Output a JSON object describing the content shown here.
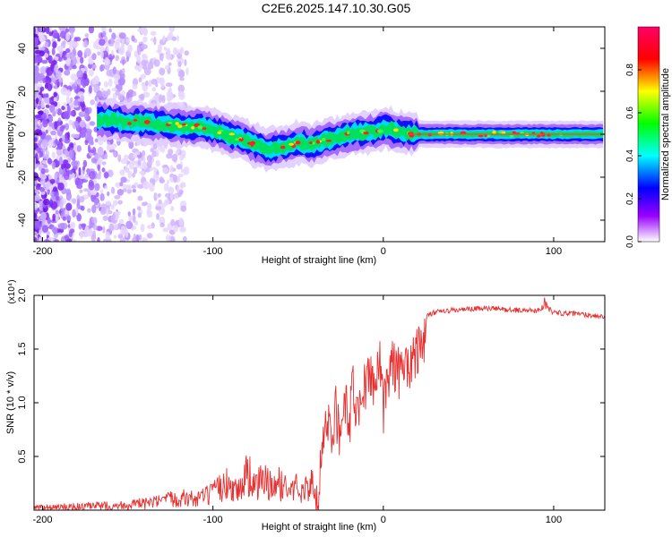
{
  "title": "C2E6.2025.147.10.30.G05",
  "chart_data": [
    {
      "type": "heatmap",
      "xlabel": "Height of straight line (km)",
      "ylabel": "Frequency (Hz)",
      "xlim": [
        -205,
        130
      ],
      "ylim": [
        -50,
        50
      ],
      "xticks": [
        -200,
        -100,
        0,
        100
      ],
      "yticks": [
        -40,
        -20,
        0,
        20,
        40
      ],
      "colorbar": {
        "label": "Normalized spectral amplitude",
        "range": [
          0.0,
          1.0
        ],
        "ticks": [
          "0.0",
          "0.2",
          "0.4",
          "0.6",
          "0.8"
        ],
        "tick_values": [
          0.0,
          0.2,
          0.4,
          0.6,
          0.8
        ],
        "colors": [
          "#ffffff",
          "#9900ff",
          "#0000ff",
          "#00ffff",
          "#00ff00",
          "#ffff00",
          "#ff0000",
          "#ff0066"
        ]
      },
      "ridge": {
        "x": [
          -165,
          -150,
          -135,
          -120,
          -105,
          -95,
          -85,
          -75,
          -68,
          -60,
          -50,
          -42,
          -35,
          -25,
          -15,
          -5,
          0,
          10,
          20,
          40,
          60,
          80,
          100,
          130
        ],
        "frequency": [
          7,
          6,
          5,
          4,
          3,
          1,
          -2,
          -5,
          -7,
          -6,
          -4,
          -5,
          -3,
          -1,
          1,
          1,
          3,
          1,
          0,
          0,
          0,
          0,
          0,
          0
        ]
      }
    },
    {
      "type": "line",
      "xlabel": "Height of straight line (km)",
      "ylabel": "SNR (10 * v/v)",
      "y_exponent": "(x10⁴)",
      "xlim": [
        -205,
        130
      ],
      "ylim": [
        0,
        2.0
      ],
      "xticks": [
        -200,
        -100,
        0,
        100
      ],
      "yticks": [
        0.5,
        1.0,
        1.5,
        2.0
      ],
      "ytick_labels": [
        "0.5",
        "1.0",
        "1.5",
        "2.0"
      ],
      "color": "#e83030",
      "series": [
        {
          "x": [
            -205,
            -180,
            -160,
            -140,
            -130,
            -120,
            -110,
            -100,
            -95,
            -90,
            -85,
            -80,
            -75,
            -70,
            -65,
            -60,
            -55,
            -50,
            -45,
            -40,
            -38,
            -35,
            -32,
            -30,
            -28,
            -25,
            -22,
            -20,
            -18,
            -15,
            -12,
            -10,
            -8,
            -5,
            -2,
            0,
            5,
            10,
            15,
            20,
            25,
            30,
            40,
            50,
            60,
            70,
            80,
            90,
            95,
            100,
            110,
            120,
            130
          ],
          "values": [
            0.02,
            0.03,
            0.04,
            0.06,
            0.08,
            0.12,
            0.1,
            0.15,
            0.22,
            0.25,
            0.18,
            0.35,
            0.22,
            0.28,
            0.2,
            0.25,
            0.18,
            0.22,
            0.2,
            0.25,
            0.45,
            0.9,
            1.0,
            0.7,
            1.2,
            0.8,
            1.3,
            1.0,
            1.4,
            1.1,
            1.5,
            1.3,
            1.55,
            1.4,
            1.6,
            1.2,
            1.6,
            1.5,
            1.6,
            1.72,
            1.8,
            1.84,
            1.86,
            1.87,
            1.88,
            1.87,
            1.86,
            1.86,
            1.9,
            1.84,
            1.83,
            1.82,
            1.8
          ]
        }
      ]
    }
  ]
}
